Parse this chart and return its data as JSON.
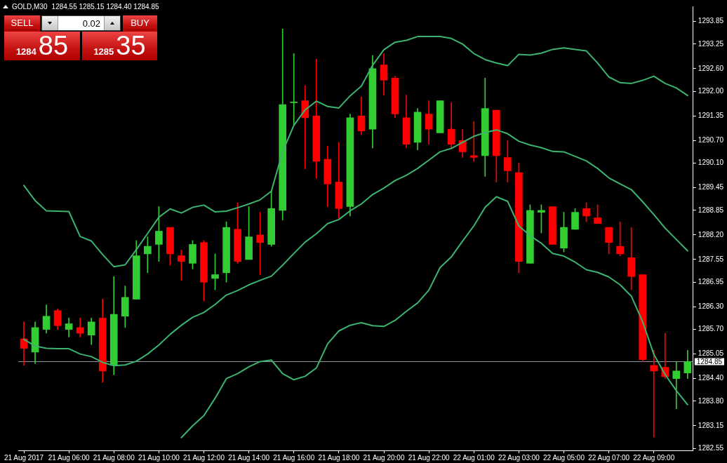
{
  "chart_data": {
    "type": "candlestick",
    "title": "GOLD,M30",
    "subtitle": "1284.55 1285.15 1284.40 1284.85",
    "categories": [
      "21 Aug 2017",
      null,
      null,
      null,
      "21 Aug 06:00",
      null,
      null,
      null,
      "21 Aug 08:00",
      null,
      null,
      null,
      "21 Aug 10:00",
      null,
      null,
      null,
      "21 Aug 12:00",
      null,
      null,
      null,
      "21 Aug 14:00",
      null,
      null,
      null,
      "21 Aug 16:00",
      null,
      null,
      null,
      "21 Aug 18:00",
      null,
      null,
      null,
      "21 Aug 20:00",
      null,
      null,
      null,
      "21 Aug 22:00",
      null,
      null,
      null,
      "22 Aug 01:00",
      null,
      null,
      null,
      "22 Aug 03:00",
      null,
      null,
      null,
      "22 Aug 05:00",
      null,
      null,
      null,
      "22 Aug 07:00",
      null,
      null,
      null,
      "22 Aug 09:00",
      null,
      null,
      null
    ],
    "ohlc": [
      [
        1285.45,
        1285.9,
        1284.75,
        1285.2
      ],
      [
        1285.1,
        1285.9,
        1284.8,
        1285.75
      ],
      [
        1285.7,
        1286.35,
        1285.6,
        1286.05
      ],
      [
        1286.2,
        1286.25,
        1285.7,
        1285.8
      ],
      [
        1285.7,
        1286.0,
        1285.5,
        1285.85
      ],
      [
        1285.75,
        1286.0,
        1285.5,
        1285.6
      ],
      [
        1285.55,
        1286.0,
        1285.3,
        1285.9
      ],
      [
        1286.0,
        1286.5,
        1284.3,
        1284.6
      ],
      [
        1284.75,
        1287.1,
        1284.5,
        1286.1
      ],
      [
        1286.05,
        1286.85,
        1285.75,
        1286.55
      ],
      [
        1286.5,
        1288.05,
        1286.5,
        1287.65
      ],
      [
        1287.7,
        1288.15,
        1287.2,
        1287.9
      ],
      [
        1287.95,
        1288.95,
        1287.5,
        1288.3
      ],
      [
        1288.4,
        1288.4,
        1287.4,
        1287.7
      ],
      [
        1287.65,
        1287.8,
        1287.0,
        1287.5
      ],
      [
        1287.45,
        1288.05,
        1287.3,
        1287.95
      ],
      [
        1288.0,
        1288.05,
        1286.45,
        1286.95
      ],
      [
        1287.05,
        1287.7,
        1286.75,
        1287.15
      ],
      [
        1287.2,
        1288.55,
        1286.95,
        1288.4
      ],
      [
        1288.35,
        1289.05,
        1287.45,
        1287.5
      ],
      [
        1287.55,
        1288.95,
        1287.55,
        1288.15
      ],
      [
        1288.2,
        1288.8,
        1287.15,
        1288.0
      ],
      [
        1287.95,
        1289.35,
        1287.9,
        1288.9
      ],
      [
        1288.85,
        1293.65,
        1288.6,
        1291.65
      ],
      [
        1291.7,
        1293.0,
        1291.1,
        1291.7
      ],
      [
        1291.75,
        1292.15,
        1289.95,
        1291.3
      ],
      [
        1291.35,
        1292.85,
        1289.7,
        1290.15
      ],
      [
        1290.2,
        1290.55,
        1288.95,
        1289.55
      ],
      [
        1289.6,
        1290.65,
        1288.65,
        1288.9
      ],
      [
        1288.95,
        1291.4,
        1288.7,
        1291.3
      ],
      [
        1291.35,
        1291.85,
        1290.85,
        1290.95
      ],
      [
        1291.0,
        1292.95,
        1290.5,
        1292.6
      ],
      [
        1292.7,
        1293.0,
        1291.9,
        1292.3
      ],
      [
        1292.35,
        1292.4,
        1291.3,
        1291.4
      ],
      [
        1291.3,
        1291.9,
        1290.5,
        1290.6
      ],
      [
        1290.65,
        1291.55,
        1290.45,
        1291.45
      ],
      [
        1291.4,
        1291.75,
        1290.6,
        1291.0
      ],
      [
        1290.9,
        1291.75,
        1290.9,
        1291.75
      ],
      [
        1291.0,
        1291.7,
        1290.5,
        1290.6
      ],
      [
        1290.7,
        1291.0,
        1290.25,
        1290.4
      ],
      [
        1290.3,
        1291.2,
        1290.15,
        1290.25
      ],
      [
        1290.3,
        1292.35,
        1289.75,
        1291.55
      ],
      [
        1291.5,
        1291.5,
        1289.6,
        1290.3
      ],
      [
        1290.25,
        1290.7,
        1289.6,
        1289.9
      ],
      [
        1289.85,
        1290.1,
        1287.2,
        1287.5
      ],
      [
        1287.45,
        1289.0,
        1287.45,
        1288.85
      ],
      [
        1288.8,
        1289.0,
        1288.25,
        1288.85
      ],
      [
        1288.95,
        1288.95,
        1287.95,
        1287.95
      ],
      [
        1287.85,
        1288.8,
        1287.75,
        1288.4
      ],
      [
        1288.35,
        1288.9,
        1288.35,
        1288.8
      ],
      [
        1288.9,
        1289.05,
        1288.55,
        1288.7
      ],
      [
        1288.65,
        1289.0,
        1288.5,
        1288.5
      ],
      [
        1288.4,
        1288.4,
        1287.7,
        1288.0
      ],
      [
        1287.9,
        1288.55,
        1287.65,
        1287.7
      ],
      [
        1287.6,
        1288.4,
        1286.75,
        1287.1
      ],
      [
        1287.15,
        1287.15,
        1284.85,
        1284.9
      ],
      [
        1284.75,
        1285.15,
        1282.85,
        1284.6
      ],
      [
        1284.7,
        1285.6,
        1284.4,
        1284.45
      ],
      [
        1284.4,
        1284.85,
        1283.6,
        1284.6
      ],
      [
        1284.55,
        1285.15,
        1284.4,
        1284.85
      ]
    ],
    "colors": [
      "#ff0000",
      "#32cd32",
      "#32cd32",
      "#ff0000",
      "#32cd32",
      "#ff0000",
      "#32cd32",
      "#ff0000",
      "#32cd32",
      "#32cd32",
      "#32cd32",
      "#32cd32",
      "#32cd32",
      "#ff0000",
      "#ff0000",
      "#32cd32",
      "#ff0000",
      "#32cd32",
      "#32cd32",
      "#ff0000",
      "#32cd32",
      "#ff0000",
      "#32cd32",
      "#32cd32",
      "#32cd32",
      "#ff0000",
      "#ff0000",
      "#ff0000",
      "#ff0000",
      "#32cd32",
      "#ff0000",
      "#32cd32",
      "#ff0000",
      "#ff0000",
      "#ff0000",
      "#32cd32",
      "#ff0000",
      "#32cd32",
      "#ff0000",
      "#ff0000",
      "#ff0000",
      "#32cd32",
      "#ff0000",
      "#ff0000",
      "#ff0000",
      "#32cd32",
      "#32cd32",
      "#ff0000",
      "#32cd32",
      "#32cd32",
      "#ff0000",
      "#ff0000",
      "#ff0000",
      "#ff0000",
      "#ff0000",
      "#ff0000",
      "#ff0000",
      "#ff0000",
      "#32cd32",
      "#32cd32"
    ],
    "series": [
      {
        "type": "line",
        "color": "#3cb371",
        "values": [
          1289.51,
          1289.11,
          1288.84,
          1288.83,
          1288.82,
          1288.16,
          1288.04,
          1287.68,
          1287.36,
          1287.41,
          1287.81,
          1288.24,
          1288.67,
          1288.89,
          1288.78,
          1288.93,
          1288.99,
          1288.81,
          1288.83,
          1288.92,
          1289.02,
          1289.13,
          1289.36,
          1290.4,
          1291.1,
          1291.51,
          1291.74,
          1291.6,
          1291.56,
          1291.88,
          1292.14,
          1292.69,
          1293.1,
          1293.3,
          1293.35,
          1293.45,
          1293.45,
          1293.45,
          1293.4,
          1293.25,
          1293.0,
          1292.84,
          1292.75,
          1292.68,
          1292.98,
          1292.96,
          1293.01,
          1293.11,
          1293.15,
          1293.11,
          1293.07,
          1292.75,
          1292.38,
          1292.23,
          1292.21,
          1292.29,
          1292.4,
          1292.21,
          1292.09,
          1291.89
        ]
      },
      {
        "type": "line",
        "color": "#3cb371",
        "values": [
          1285.44,
          1285.26,
          1285.2,
          1285.19,
          1285.19,
          1285.05,
          1284.98,
          1284.83,
          1284.74,
          1284.76,
          1284.86,
          1285.05,
          1285.29,
          1285.57,
          1285.81,
          1286.02,
          1286.15,
          1286.36,
          1286.61,
          1286.73,
          1286.88,
          1287.0,
          1287.11,
          1287.4,
          1287.71,
          1288.01,
          1288.23,
          1288.5,
          1288.61,
          1288.84,
          1289.02,
          1289.27,
          1289.44,
          1289.64,
          1289.78,
          1289.96,
          1290.18,
          1290.4,
          1290.49,
          1290.65,
          1290.81,
          1290.91,
          1290.98,
          1290.88,
          1290.68,
          1290.58,
          1290.51,
          1290.41,
          1290.4,
          1290.28,
          1290.16,
          1289.96,
          1289.71,
          1289.55,
          1289.4,
          1289.08,
          1288.74,
          1288.38,
          1288.08,
          1287.78
        ]
      },
      {
        "type": "line",
        "color": "#3cb371",
        "values": [
          null,
          null,
          null,
          null,
          null,
          null,
          null,
          null,
          null,
          null,
          null,
          null,
          null,
          null,
          1282.84,
          1283.15,
          1283.42,
          1283.88,
          1284.4,
          1284.53,
          1284.71,
          1284.85,
          1284.89,
          1284.53,
          1284.37,
          1284.46,
          1284.68,
          1285.32,
          1285.66,
          1285.81,
          1285.88,
          1285.8,
          1285.78,
          1285.94,
          1286.18,
          1286.4,
          1286.74,
          1287.34,
          1287.62,
          1288.04,
          1288.44,
          1288.93,
          1289.21,
          1289.09,
          1288.44,
          1288.18,
          1287.98,
          1287.71,
          1287.64,
          1287.48,
          1287.28,
          1287.21,
          1287.09,
          1286.88,
          1286.58,
          1285.91,
          1285.04,
          1284.51,
          1284.08,
          1283.71
        ]
      }
    ],
    "ylim": [
      1282.5,
      1294.25
    ],
    "yticks": [
      1293.85,
      1293.25,
      {
        "value": 1292.6,
        "label": "1292.60"
      },
      {
        "value": 1292,
        "label": "1292.00"
      },
      1291.35,
      {
        "value": 1290.7,
        "label": "1290.70"
      },
      {
        "value": 1290.1,
        "label": "1290.10"
      },
      1289.45,
      1288.85,
      {
        "value": 1288.2,
        "label": "1288.20"
      },
      1287.55,
      1286.95,
      {
        "value": 1286.3,
        "label": "1286.30"
      },
      {
        "value": 1285.7,
        "label": "1285.70"
      },
      1285.05,
      {
        "value": 1284.4,
        "label": "1284.40"
      },
      {
        "value": 1283.8,
        "label": "1283.80"
      },
      1283.15,
      1282.55
    ],
    "ref_lines": [
      {
        "axis": "y",
        "value": 1284.85,
        "label": "1284.85",
        "color": "#8c96a0"
      }
    ],
    "annotations": [
      "SELL",
      "0.02",
      "BUY",
      "1284",
      "85",
      "1285",
      "35"
    ],
    "marker": "none",
    "line_style": "solid"
  }
}
